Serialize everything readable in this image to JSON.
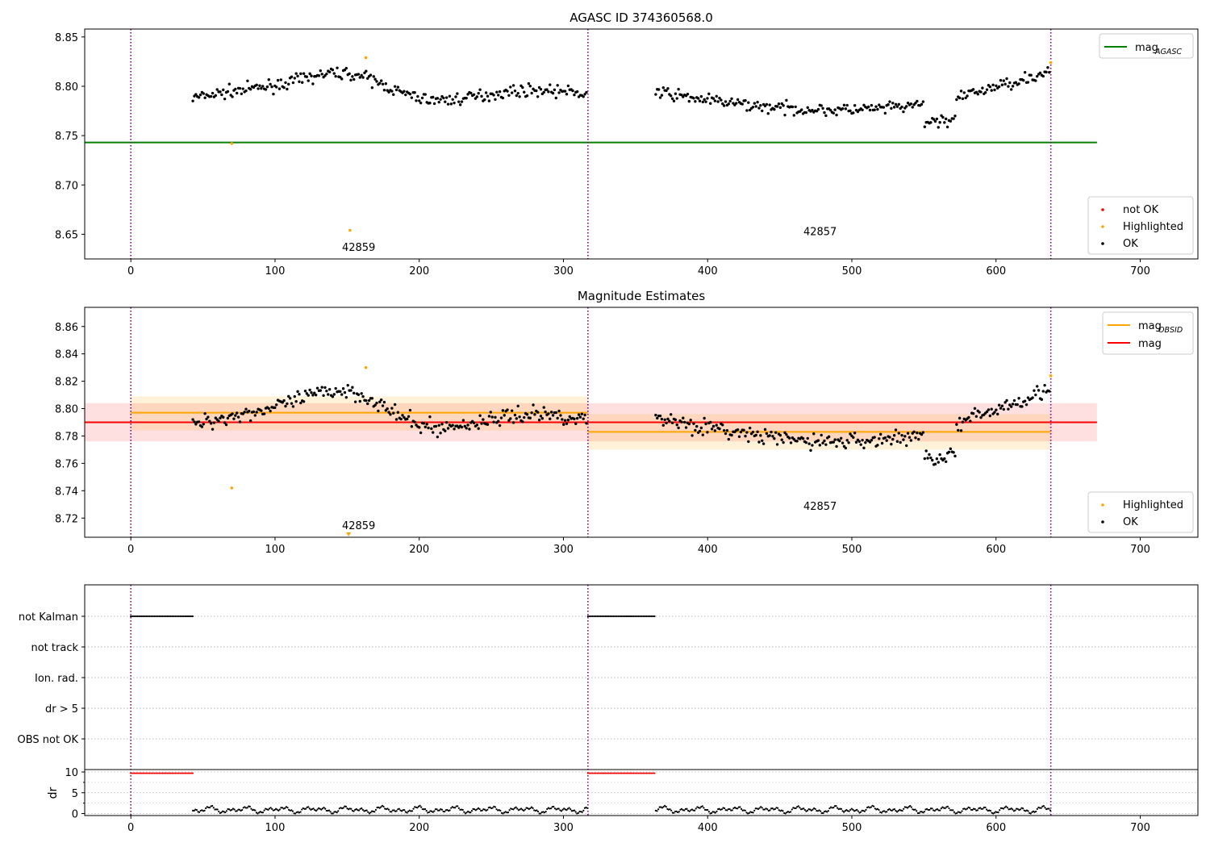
{
  "chart_data": [
    {
      "type": "scatter",
      "title": "AGASC ID 374360568.0",
      "xlim": [
        -32,
        740
      ],
      "ylim": [
        8.625,
        8.858
      ],
      "xticks": [
        0,
        100,
        200,
        300,
        400,
        500,
        600,
        700
      ],
      "yticks": [
        8.65,
        8.7,
        8.75,
        8.8,
        8.85
      ],
      "ytick_labels": [
        "8.65",
        "8.70",
        "8.75",
        "8.80",
        "8.85"
      ],
      "obs_boundaries": [
        0,
        317,
        638
      ],
      "obs_labels": [
        {
          "x": 158,
          "y": 8.633,
          "text": "42859"
        },
        {
          "x": 478,
          "y": 8.649,
          "text": "42857"
        }
      ],
      "hlines": [
        {
          "name": "mag_AGASC",
          "y": 8.743,
          "x": [
            -32,
            670
          ],
          "color": "#008000"
        }
      ],
      "series": [
        {
          "name": "not OK",
          "color": "#ff0000",
          "points": []
        },
        {
          "name": "Highlighted",
          "color": "#ffa500",
          "points": [
            [
              70,
              8.742
            ],
            [
              152,
              8.654
            ],
            [
              163,
              8.829
            ],
            [
              638,
              8.824
            ]
          ]
        },
        {
          "name": "OK",
          "color": "#000000",
          "segments": [
            [
              43,
              317,
              8.79,
              8.8,
              8.82,
              0.007
            ],
            [
              364,
              638,
              8.79,
              8.78,
              8.8,
              0.007
            ]
          ]
        }
      ],
      "legend_top": {
        "position": "top-right",
        "entries": [
          {
            "label": "mag",
            "sub": "AGASC",
            "color": "#008000",
            "kind": "line"
          }
        ]
      },
      "legend_bottom": {
        "position": "bottom-right",
        "entries": [
          {
            "label": "not OK",
            "color": "#ff0000",
            "kind": "dot"
          },
          {
            "label": "Highlighted",
            "color": "#ffa500",
            "kind": "dot"
          },
          {
            "label": "OK",
            "color": "#000000",
            "kind": "dot"
          }
        ]
      }
    },
    {
      "type": "scatter",
      "title": "Magnitude Estimates",
      "xlim": [
        -32,
        740
      ],
      "ylim": [
        8.706,
        8.874
      ],
      "xticks": [
        0,
        100,
        200,
        300,
        400,
        500,
        600,
        700
      ],
      "yticks": [
        8.72,
        8.74,
        8.76,
        8.78,
        8.8,
        8.82,
        8.84,
        8.86
      ],
      "ytick_labels": [
        "8.72",
        "8.74",
        "8.76",
        "8.78",
        "8.80",
        "8.82",
        "8.84",
        "8.86"
      ],
      "obs_boundaries": [
        0,
        317,
        638
      ],
      "obs_labels": [
        {
          "x": 158,
          "y": 8.712,
          "text": "42859"
        },
        {
          "x": 478,
          "y": 8.726,
          "text": "42857"
        }
      ],
      "bands": [
        {
          "x": [
            -32,
            670
          ],
          "y": [
            8.776,
            8.804
          ],
          "color": "#ff0000",
          "opacity": 0.12
        },
        {
          "x": [
            0,
            317
          ],
          "y": [
            8.784,
            8.809
          ],
          "color": "#ffa500",
          "opacity": 0.15
        },
        {
          "x": [
            317,
            638
          ],
          "y": [
            8.77,
            8.796
          ],
          "color": "#ffa500",
          "opacity": 0.15
        }
      ],
      "hlines": [
        {
          "name": "mag_OBSID",
          "y": 8.797,
          "x": [
            0,
            317
          ],
          "color": "#ffa500"
        },
        {
          "name": "mag_OBSID",
          "y": 8.783,
          "x": [
            317,
            638
          ],
          "color": "#ffa500"
        },
        {
          "name": "mag",
          "y": 8.79,
          "x": [
            -32,
            670
          ],
          "color": "#ff0000"
        }
      ],
      "series": [
        {
          "name": "Highlighted",
          "color": "#ffa500",
          "points": [
            [
              70,
              8.742
            ],
            [
              163,
              8.83
            ],
            [
              638,
              8.824
            ]
          ]
        },
        {
          "name": "OK",
          "color": "#000000",
          "segments": [
            [
              43,
              317,
              8.79,
              8.8,
              8.82,
              0.007
            ],
            [
              364,
              638,
              8.79,
              8.78,
              8.8,
              0.007
            ]
          ]
        }
      ],
      "offscale_marker": {
        "x": 151,
        "color": "#ffa500"
      },
      "legend_top": {
        "position": "top-right",
        "entries": [
          {
            "label": "mag",
            "sub": "OBSID",
            "color": "#ffa500",
            "kind": "line"
          },
          {
            "label": "mag",
            "sub": "",
            "color": "#ff0000",
            "kind": "line"
          }
        ]
      },
      "legend_bottom": {
        "position": "bottom-right",
        "entries": [
          {
            "label": "Highlighted",
            "color": "#ffa500",
            "kind": "dot"
          },
          {
            "label": "OK",
            "color": "#000000",
            "kind": "dot"
          }
        ]
      }
    },
    {
      "type": "scatter",
      "title": "",
      "xlim": [
        -32,
        740
      ],
      "categories": [
        "not Kalman",
        "not track",
        "Ion. rad.",
        "dr > 5",
        "OBS not OK"
      ],
      "flags": [
        {
          "category": "not Kalman",
          "ranges": [
            [
              0,
              43
            ],
            [
              317,
              364
            ]
          ]
        }
      ],
      "obs_boundaries": [
        0,
        317,
        638
      ]
    },
    {
      "type": "scatter",
      "title": "",
      "xlim": [
        -32,
        740
      ],
      "ylim": [
        -0.3,
        10.5
      ],
      "yticks": [
        0,
        5,
        10
      ],
      "ytick_labels": [
        "0",
        "5",
        "10"
      ],
      "minor_yticks": [
        2.5,
        7.5
      ],
      "ylabel": "dr",
      "xticks": [
        0,
        100,
        200,
        300,
        400,
        500,
        600,
        700
      ],
      "obs_boundaries": [
        0,
        317,
        638
      ],
      "series": [
        {
          "name": "dr clipped",
          "color": "#ff0000",
          "ranges": [
            [
              0,
              43,
              9.7
            ],
            [
              317,
              364,
              9.7
            ]
          ]
        },
        {
          "name": "dr",
          "color": "#000000",
          "ranges": [
            [
              43,
              317
            ],
            [
              364,
              638
            ]
          ],
          "mean": 0.9,
          "amp": 0.8
        }
      ]
    }
  ]
}
